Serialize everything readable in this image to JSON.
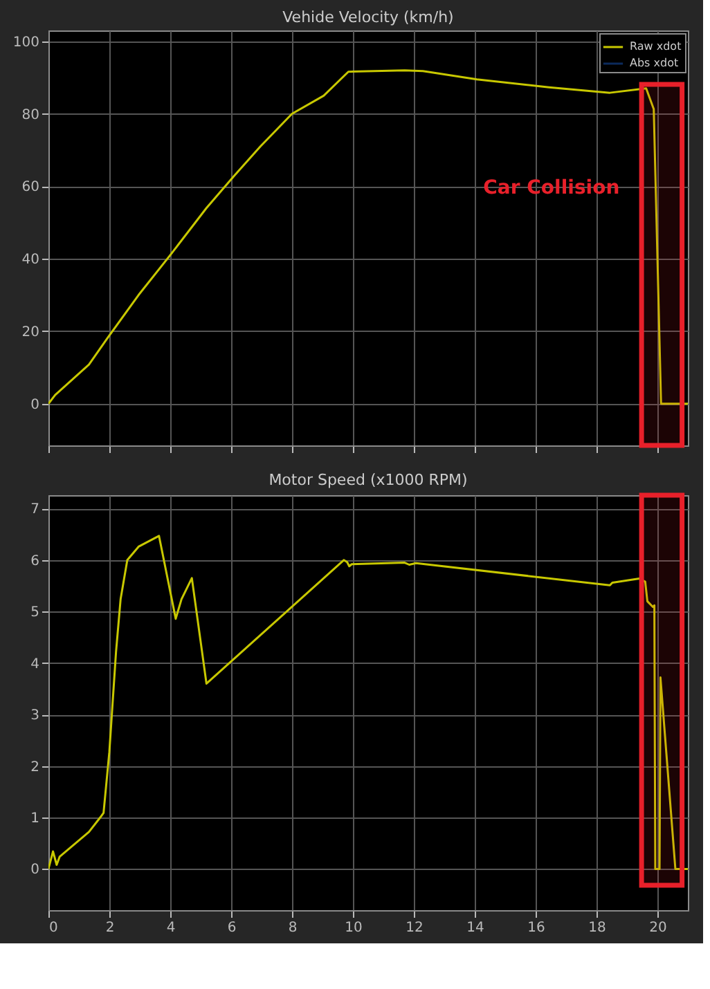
{
  "chart_data": [
    {
      "type": "line",
      "title": "Vehide Velocity (km/h)",
      "x": [
        0,
        0.22,
        1.33,
        1.93,
        2.96,
        4.0,
        5.19,
        6.07,
        6.96,
        8.0,
        9.04,
        9.85,
        11.7,
        12.3,
        14.07,
        16.44,
        18.44,
        19.63,
        19.88,
        20.12,
        21
      ],
      "series": [
        {
          "name": "Raw xdot",
          "color": "#c8c800",
          "values": [
            0,
            2.4,
            10.8,
            18,
            30,
            41,
            54,
            62.6,
            71,
            80,
            85,
            91.6,
            92,
            91.8,
            89.5,
            87.3,
            85.8,
            87,
            81.3,
            0,
            0
          ]
        },
        {
          "name": "Abs xdot",
          "color": "#0c2a5c",
          "values": [
            null,
            null,
            null,
            null,
            null,
            null,
            null,
            null,
            null,
            null,
            null,
            null,
            null,
            null,
            null,
            null,
            null,
            null,
            null,
            null,
            null
          ]
        }
      ],
      "xlim": [
        0,
        21
      ],
      "xticks": [
        0,
        2,
        4,
        6,
        8,
        10,
        12,
        14,
        16,
        18,
        20
      ],
      "ylim": [
        -11.5,
        103
      ],
      "yticks": [
        0,
        20,
        40,
        60,
        80,
        100
      ],
      "tick_labels": "y",
      "grid": true,
      "legend": "top right",
      "annotations": [
        "Car Collision"
      ],
      "bands": [
        {
          "axis": "x",
          "from": 19.48,
          "to": 20.81,
          "color": "#e8202a"
        }
      ]
    },
    {
      "type": "line",
      "title": "Motor Speed (x1000 RPM)",
      "x": [
        0,
        0.15,
        0.27,
        0.37,
        1.33,
        1.7,
        1.81,
        2.0,
        2.22,
        2.37,
        2.59,
        2.96,
        3.63,
        4.18,
        4.37,
        4.71,
        5.19,
        7.56,
        9.7,
        9.81,
        9.88,
        9.96,
        11.7,
        11.85,
        12.07,
        18.44,
        18.52,
        19.41,
        19.6,
        19.67,
        19.85,
        19.9,
        19.93,
        20.07,
        20.1,
        20.59,
        21
      ],
      "series": [
        {
          "color": "#c8c800",
          "values": [
            0,
            0.34,
            0.08,
            0.24,
            0.72,
            1.0,
            1.09,
            2.27,
            4.22,
            5.24,
            6.0,
            6.26,
            6.47,
            4.86,
            5.24,
            5.65,
            3.6,
            4.86,
            6.0,
            5.96,
            5.88,
            5.92,
            5.95,
            5.91,
            5.94,
            5.51,
            5.56,
            5.64,
            5.58,
            5.2,
            5.09,
            5.12,
            0,
            0,
            3.72,
            0,
            0
          ]
        }
      ],
      "xlim": [
        0,
        21
      ],
      "xticks": [
        0,
        2,
        4,
        6,
        8,
        10,
        12,
        14,
        16,
        18,
        20
      ],
      "ylim": [
        -0.8,
        7.26
      ],
      "yticks": [
        0,
        1,
        2,
        3,
        4,
        5,
        6,
        7
      ],
      "grid": true,
      "bands": [
        {
          "axis": "x",
          "from": 19.48,
          "to": 20.81,
          "color": "#e8202a"
        }
      ]
    }
  ]
}
